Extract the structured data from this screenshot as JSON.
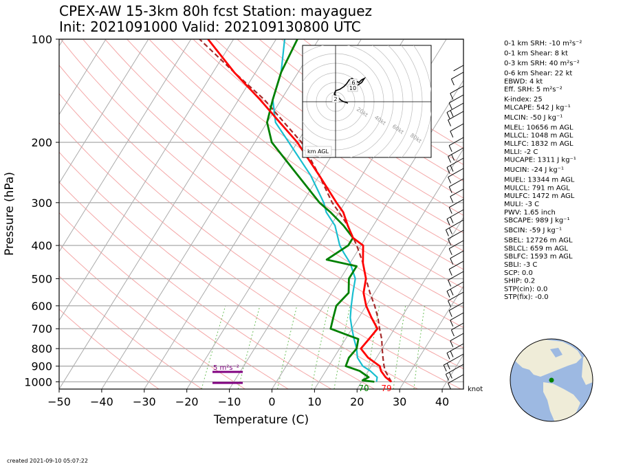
{
  "header": {
    "title_line1": "CPEX-AW 15-3km  80h fcst  Station: mayaguez",
    "title_line2": "Init: 2021091000  Valid: 202109130800 UTC"
  },
  "footer": {
    "created": "created 2021-09-10 05:07:22"
  },
  "colors": {
    "temperature": "#ff0000",
    "dewpoint": "#008000",
    "wetbulb": "#17becf",
    "parcel": "#a52a2a",
    "srh_bar": "#800080",
    "dry_adiabat": "#f4a7a7",
    "mixing_ratio": "#6bbf59"
  },
  "chart_data": {
    "type": "skew-T log-P sounding",
    "xlabel": "Temperature (C)",
    "ylabel": "Pressure (hPa)",
    "xlim": [
      -50,
      45
    ],
    "ylim": [
      1050,
      100
    ],
    "y_scale": "log",
    "x_ticks": [
      "−50",
      "−40",
      "−30",
      "−20",
      "−10",
      "0",
      "10",
      "20",
      "30",
      "40"
    ],
    "y_ticks": [
      100,
      200,
      300,
      400,
      500,
      600,
      700,
      800,
      900,
      1000
    ],
    "surface_labels": {
      "dewpoint": "70",
      "temperature": "79"
    },
    "srh_label": "5 m²s⁻²",
    "barb_units": "knot",
    "series": [
      {
        "name": "temperature",
        "points": [
          [
            27,
            1000
          ],
          [
            25,
            970
          ],
          [
            23,
            930
          ],
          [
            22,
            900
          ],
          [
            18,
            850
          ],
          [
            15,
            800
          ],
          [
            15.5,
            750
          ],
          [
            16,
            700
          ],
          [
            13,
            650
          ],
          [
            10,
            600
          ],
          [
            7.5,
            550
          ],
          [
            6,
            500
          ],
          [
            3,
            450
          ],
          [
            0.5,
            400
          ],
          [
            -3,
            380
          ],
          [
            -6,
            350
          ],
          [
            -9,
            320
          ],
          [
            -12,
            300
          ],
          [
            -20,
            250
          ],
          [
            -30,
            200
          ],
          [
            -37,
            175
          ],
          [
            -45,
            150
          ],
          [
            -55,
            125
          ],
          [
            -66,
            100
          ]
        ]
      },
      {
        "name": "dewpoint",
        "points": [
          [
            23,
            1000
          ],
          [
            20,
            990
          ],
          [
            21,
            970
          ],
          [
            18,
            930
          ],
          [
            14,
            900
          ],
          [
            13.5,
            850
          ],
          [
            14,
            800
          ],
          [
            13,
            750
          ],
          [
            5,
            700
          ],
          [
            4,
            650
          ],
          [
            3,
            600
          ],
          [
            4,
            550
          ],
          [
            2,
            500
          ],
          [
            2,
            460
          ],
          [
            -6,
            440
          ],
          [
            -3,
            400
          ],
          [
            -3,
            380
          ],
          [
            -7,
            350
          ],
          [
            -12,
            320
          ],
          [
            -16,
            300
          ],
          [
            -25,
            250
          ],
          [
            -36,
            200
          ],
          [
            -40,
            175
          ],
          [
            -42,
            150
          ],
          [
            -44,
            125
          ],
          [
            -45,
            100
          ]
        ]
      },
      {
        "name": "wetbulb",
        "points": [
          [
            23.5,
            1000
          ],
          [
            23,
            970
          ],
          [
            20.5,
            930
          ],
          [
            18,
            900
          ],
          [
            15.5,
            850
          ],
          [
            14,
            800
          ],
          [
            12,
            750
          ],
          [
            10,
            700
          ],
          [
            8,
            650
          ],
          [
            6.5,
            600
          ],
          [
            5,
            550
          ],
          [
            3.5,
            500
          ],
          [
            0,
            450
          ],
          [
            -3,
            420
          ],
          [
            -5,
            400
          ],
          [
            -9,
            350
          ],
          [
            -13,
            320
          ],
          [
            -15,
            300
          ],
          [
            -22,
            250
          ],
          [
            -32,
            200
          ],
          [
            -38,
            175
          ],
          [
            -42,
            150
          ],
          [
            -44,
            125
          ],
          [
            -48,
            100
          ]
        ]
      },
      {
        "name": "parcel",
        "points": [
          [
            27,
            1000
          ],
          [
            24,
            930
          ],
          [
            23,
            900
          ],
          [
            21.5,
            850
          ],
          [
            20,
            800
          ],
          [
            18.5,
            750
          ],
          [
            16.5,
            700
          ],
          [
            14.5,
            650
          ],
          [
            12,
            600
          ],
          [
            9,
            550
          ],
          [
            6,
            500
          ],
          [
            3,
            450
          ],
          [
            -1,
            400
          ],
          [
            -6,
            350
          ],
          [
            -10,
            320
          ],
          [
            -13,
            300
          ],
          [
            -20,
            250
          ],
          [
            -29,
            200
          ],
          [
            -36,
            175
          ],
          [
            -44,
            150
          ],
          [
            -55,
            125
          ],
          [
            -68,
            100
          ]
        ]
      }
    ],
    "hodograph": {
      "ring_labels": [
        "20kt",
        "40kt",
        "60kt",
        "80kt"
      ],
      "height_labels": [
        "2",
        "6",
        "10"
      ],
      "legend": "km AGL"
    }
  },
  "indices": [
    "0-1 km SRH: -10 m²s⁻²",
    "0-1 km Shear: 8 kt",
    "0-3 km SRH: 40 m²s⁻²",
    "0-6 km Shear: 22 kt",
    "EBWD: 4 kt",
    "Eff. SRH: 5 m²s⁻²",
    "K-index: 25",
    "MLCAPE: 542 J kg⁻¹",
    "MLCIN: -50 J kg⁻¹",
    "MLEL: 10656 m AGL",
    "MLLCL: 1048 m AGL",
    "MLLFC: 1832 m AGL",
    "MLLI: -2 C",
    "MUCAPE: 1311 J kg⁻¹",
    "MUCIN: -24 J kg⁻¹",
    "MUEL: 13344 m AGL",
    "MULCL: 791 m AGL",
    "MULFC: 1472 m AGL",
    "MULI: -3 C",
    "PWV: 1.65 inch",
    "SBCAPE: 989 J kg⁻¹",
    "SBCIN: -59 J kg⁻¹",
    "SBEL: 12726 m AGL",
    "SBLCL: 659 m AGL",
    "SBLFC: 1593 m AGL",
    "SBLI: -3 C",
    "SCP: 0.0",
    "SHIP: 0.2",
    "STP(cin): 0.0",
    "STP(fix): -0.0"
  ]
}
